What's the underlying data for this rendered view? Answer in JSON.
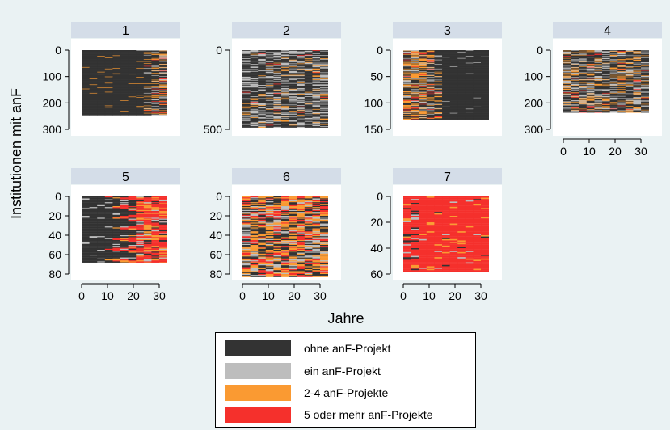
{
  "figure": {
    "ylabel": "Institutionen mit anF",
    "xlabel": "Jahre"
  },
  "colors": {
    "state_0": "#333333",
    "state_1": "#bdbdbd",
    "state_2": "#fa9a32",
    "state_3": "#f5302c",
    "background": "#eaf2f3",
    "strip": "#d4dde8"
  },
  "legend": {
    "items": [
      {
        "label": "ohne anF-Projekt",
        "color": "#333333"
      },
      {
        "label": "ein anF-Projekt",
        "color": "#bdbdbd"
      },
      {
        "label": "2-4 anF-Projekte",
        "color": "#fa9a32"
      },
      {
        "label": "5 oder mehr anF-Projekte",
        "color": "#f5302c"
      }
    ]
  },
  "chart_data": [
    {
      "type": "heatmap",
      "title": "1",
      "x_range": [
        0,
        33
      ],
      "n_rows": 245,
      "ylim": [
        0,
        300
      ],
      "yticks": [
        0,
        100,
        200,
        300
      ],
      "xticks": [
        0,
        10,
        20,
        30
      ],
      "dominant_state": "ohne anF-Projekt"
    },
    {
      "type": "heatmap",
      "title": "2",
      "x_range": [
        0,
        33
      ],
      "n_rows": 485,
      "ylim": [
        0,
        500
      ],
      "yticks": [
        0,
        500
      ],
      "xticks": [
        0,
        10,
        20,
        30
      ],
      "dominant_state": "ohne anF-Projekt"
    },
    {
      "type": "heatmap",
      "title": "3",
      "x_range": [
        0,
        33
      ],
      "n_rows": 132,
      "ylim": [
        0,
        150
      ],
      "yticks": [
        0,
        50,
        100,
        150
      ],
      "xticks": [
        0,
        10,
        20,
        30
      ],
      "dominant_state": "ohne anF-Projekt"
    },
    {
      "type": "heatmap",
      "title": "4",
      "x_range": [
        0,
        33
      ],
      "n_rows": 235,
      "ylim": [
        0,
        300
      ],
      "yticks": [
        0,
        100,
        200,
        300
      ],
      "xticks": [
        0,
        10,
        20,
        30
      ],
      "dominant_state": "ohne anF-Projekt"
    },
    {
      "type": "heatmap",
      "title": "5",
      "x_range": [
        0,
        33
      ],
      "n_rows": 69,
      "ylim": [
        0,
        80
      ],
      "yticks": [
        0,
        20,
        40,
        60,
        80
      ],
      "xticks": [
        0,
        10,
        20,
        30
      ],
      "dominant_state": "5 oder mehr anF-Projekte"
    },
    {
      "type": "heatmap",
      "title": "6",
      "x_range": [
        0,
        33
      ],
      "n_rows": 83,
      "ylim": [
        0,
        80
      ],
      "yticks": [
        0,
        20,
        40,
        60,
        80
      ],
      "xticks": [
        0,
        10,
        20,
        30
      ],
      "dominant_state": "2-4 anF-Projekte"
    },
    {
      "type": "heatmap",
      "title": "7",
      "x_range": [
        0,
        33
      ],
      "n_rows": 58,
      "ylim": [
        0,
        60
      ],
      "yticks": [
        0,
        20,
        40,
        60
      ],
      "xticks": [
        0,
        10,
        20,
        30
      ],
      "dominant_state": "5 oder mehr anF-Projekte"
    }
  ]
}
